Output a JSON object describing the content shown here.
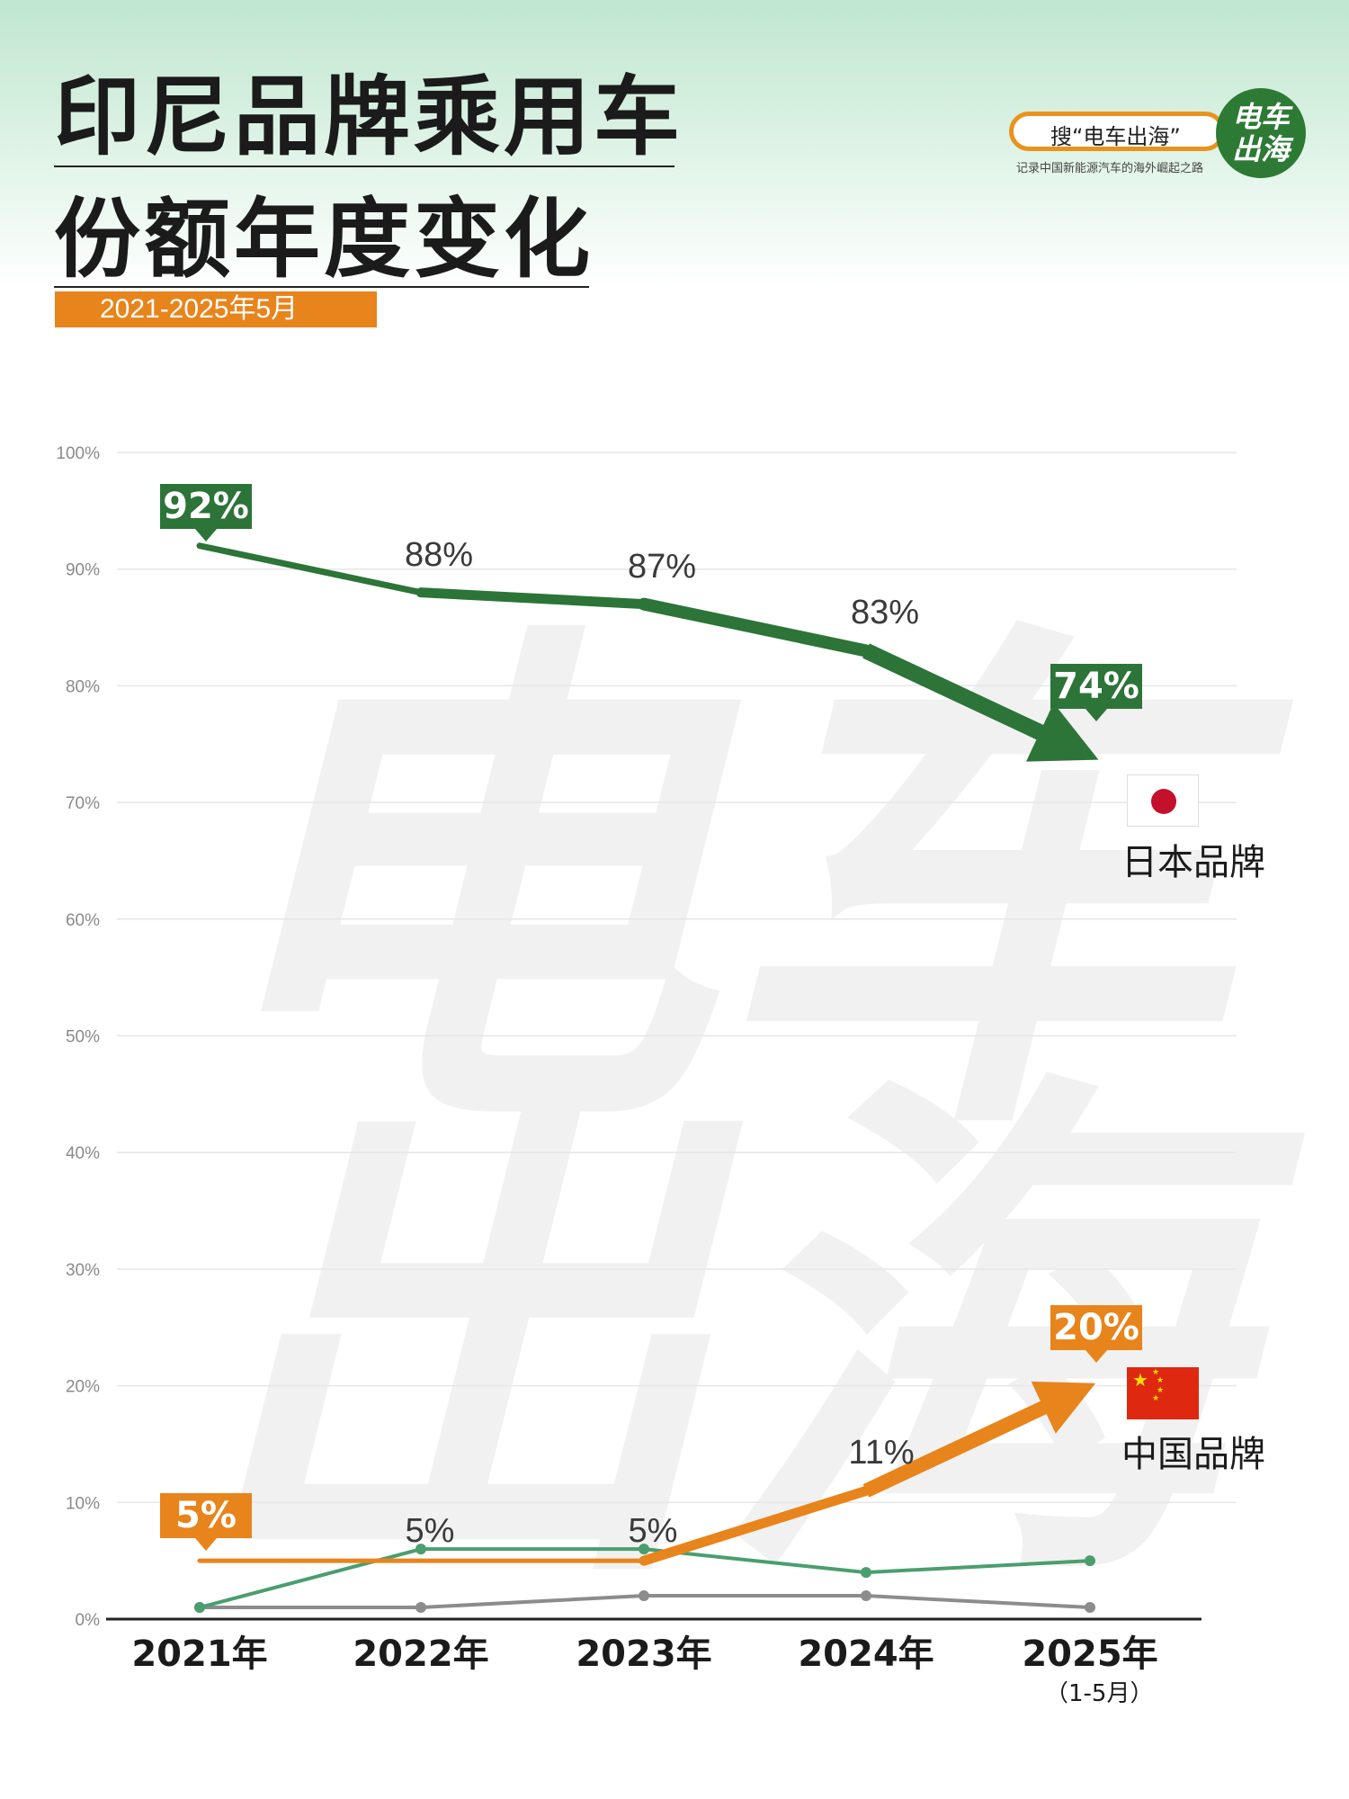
{
  "title_line1": "印尼品牌乘用车",
  "title_line2": "份额年度变化",
  "subtitle": "2021-2025年5月",
  "brand": {
    "search_text": "搜“电车出海”",
    "tagline": "记录中国新能源汽车的海外崛起之路",
    "logo_line1": "电车",
    "logo_line2": "出海"
  },
  "watermark_line1": "电车",
  "watermark_line2": "出海",
  "colors": {
    "japan": "#2c7438",
    "china": "#e8841c",
    "series3": "#4a9e6e",
    "series4": "#8c8c8c",
    "grid": "#e6e6e6",
    "axis": "#222222"
  },
  "chart_data": {
    "type": "line",
    "categories": [
      "2021年",
      "2022年",
      "2023年",
      "2024年",
      "2025年"
    ],
    "x_sublabel_last": "（1-5月）",
    "ylim": [
      0,
      100
    ],
    "yticks": [
      "0%",
      "10%",
      "20%",
      "30%",
      "40%",
      "50%",
      "60%",
      "70%",
      "80%",
      "90%",
      "100%"
    ],
    "series": [
      {
        "name": "日本品牌",
        "values": [
          92,
          88,
          87,
          83,
          74
        ],
        "labels": [
          "92%",
          "88%",
          "87%",
          "83%",
          "74%"
        ]
      },
      {
        "name": "中国品牌",
        "values": [
          5,
          5,
          5,
          11,
          20
        ],
        "labels": [
          "5%",
          "5%",
          "5%",
          "11%",
          "20%"
        ]
      },
      {
        "values": [
          1,
          6,
          6,
          4,
          5
        ]
      },
      {
        "values": [
          1,
          1,
          2,
          2,
          1
        ]
      }
    ]
  }
}
